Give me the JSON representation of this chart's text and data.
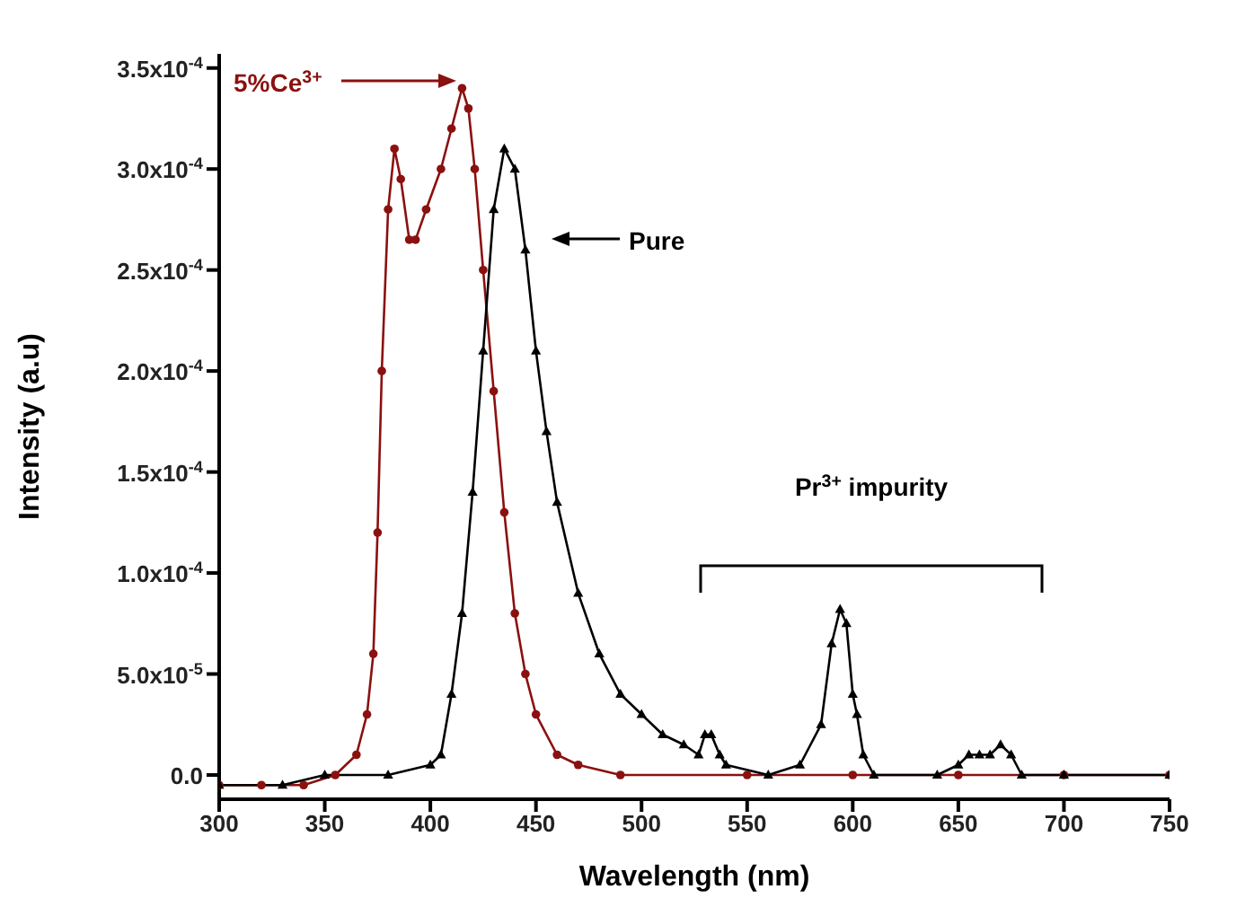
{
  "chart_data": {
    "type": "line",
    "xlabel": "Wavelength (nm)",
    "ylabel": "Intensity (a.u)",
    "xlim": [
      300,
      750
    ],
    "xticks": [
      300,
      350,
      400,
      450,
      500,
      550,
      600,
      650,
      700,
      750
    ],
    "ylim": [
      -1.2e-05,
      0.000357
    ],
    "yticks": [
      {
        "value": 0,
        "label": "0.0"
      },
      {
        "value": 5e-05,
        "label": "5.0x10$^{-5}$"
      },
      {
        "value": 0.0001,
        "label": "1.0x10$^{-4}$"
      },
      {
        "value": 0.00015,
        "label": "1.5x10$^{-4}$"
      },
      {
        "value": 0.0002,
        "label": "2.0x10$^{-4}$"
      },
      {
        "value": 0.00025,
        "label": "2.5x10$^{-4}$"
      },
      {
        "value": 0.0003,
        "label": "3.0x10$^{-4}$"
      },
      {
        "value": 0.00035,
        "label": "3.5x10$^{-4}$"
      }
    ],
    "grid": false,
    "legend": false,
    "series": [
      {
        "color": "#8b1010",
        "marker": "circle",
        "x": [
          300,
          320,
          340,
          355,
          365,
          370,
          373,
          375,
          377,
          380,
          383,
          386,
          390,
          393,
          398,
          405,
          410,
          415,
          418,
          421,
          425,
          430,
          435,
          440,
          445,
          450,
          460,
          470,
          490,
          550,
          600,
          650,
          700,
          750
        ],
        "values": [
          -5e-06,
          -5e-06,
          -5e-06,
          0,
          1e-05,
          3e-05,
          6e-05,
          0.00012,
          0.0002,
          0.00028,
          0.00031,
          0.000295,
          0.000265,
          0.000265,
          0.00028,
          0.0003,
          0.00032,
          0.00034,
          0.00033,
          0.0003,
          0.00025,
          0.00019,
          0.00013,
          8e-05,
          5e-05,
          3e-05,
          1e-05,
          5e-06,
          0,
          0,
          0,
          0,
          0,
          0
        ]
      },
      {
        "color": "#000000",
        "marker": "triangle",
        "x": [
          300,
          330,
          350,
          380,
          400,
          405,
          410,
          415,
          420,
          425,
          430,
          435,
          440,
          445,
          450,
          455,
          460,
          470,
          480,
          490,
          500,
          510,
          520,
          527,
          530,
          533,
          537,
          540,
          560,
          575,
          585,
          590,
          594,
          597,
          600,
          602,
          605,
          610,
          640,
          650,
          655,
          660,
          665,
          670,
          675,
          680,
          700,
          750
        ],
        "values": [
          -5e-06,
          -5e-06,
          0,
          0,
          5e-06,
          1e-05,
          4e-05,
          8e-05,
          0.00014,
          0.00021,
          0.00028,
          0.00031,
          0.0003,
          0.00026,
          0.00021,
          0.00017,
          0.000135,
          9e-05,
          6e-05,
          4e-05,
          3e-05,
          2e-05,
          1.5e-05,
          1e-05,
          2e-05,
          2e-05,
          1e-05,
          5e-06,
          0,
          5e-06,
          2.5e-05,
          6.5e-05,
          8.2e-05,
          7.5e-05,
          4e-05,
          3e-05,
          1e-05,
          0,
          0,
          5e-06,
          1e-05,
          1e-05,
          1e-05,
          1.5e-05,
          1e-05,
          0,
          0,
          0
        ]
      }
    ],
    "annotations": [
      "5%Ce$^{3+}$",
      "Pure",
      "Pr$^{3+}$ impurity"
    ]
  }
}
